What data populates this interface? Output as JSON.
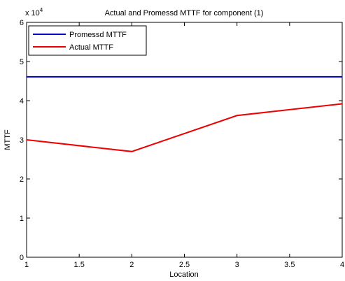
{
  "chart_data": {
    "type": "line",
    "title": "Actual and Promessd MTTF for component (1)",
    "xlabel": "Location",
    "ylabel": "MTTF",
    "y_multiplier_label": "x 10",
    "y_multiplier_exponent": "4",
    "xlim": [
      1,
      4
    ],
    "ylim": [
      0,
      60000
    ],
    "x_ticks": [
      1,
      1.5,
      2,
      2.5,
      3,
      3.5,
      4
    ],
    "x_tick_labels": [
      "1",
      "1.5",
      "2",
      "2.5",
      "3",
      "3.5",
      "4"
    ],
    "y_ticks": [
      0,
      10000,
      20000,
      30000,
      40000,
      50000,
      60000
    ],
    "y_tick_labels": [
      "0",
      "1",
      "2",
      "3",
      "4",
      "5",
      "6"
    ],
    "grid": false,
    "legend_position": "top-left",
    "series": [
      {
        "name": "Promessd MTTF",
        "color": "#0000cc",
        "x": [
          1,
          2,
          3,
          4
        ],
        "values": [
          46100,
          46100,
          46100,
          46100
        ]
      },
      {
        "name": "Actual MTTF",
        "color": "#ee0000",
        "x": [
          1,
          2,
          3,
          4
        ],
        "values": [
          30000,
          27000,
          36200,
          39200
        ]
      }
    ]
  }
}
